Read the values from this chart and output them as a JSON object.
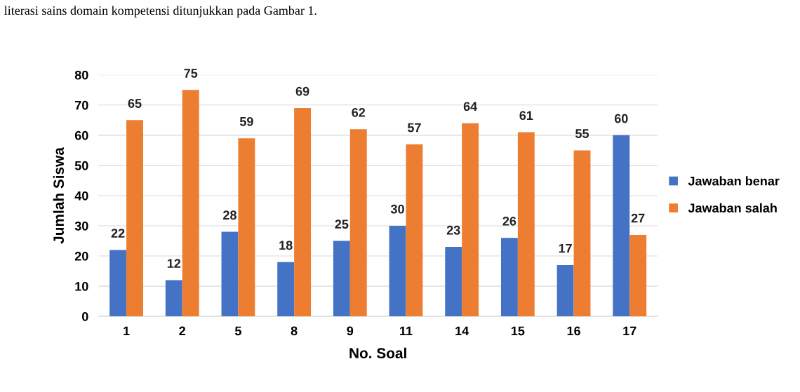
{
  "chart_data": {
    "type": "bar",
    "annotations": [
      "literasi sains domain kompetensi ditunjukkan pada Gambar 1."
    ],
    "xlabel": "No. Soal",
    "ylabel": "Jumlah Siswa",
    "categories": [
      "1",
      "2",
      "5",
      "8",
      "9",
      "11",
      "14",
      "15",
      "16",
      "17"
    ],
    "series": [
      {
        "name": "Jawaban benar",
        "color": "#4472c4",
        "values": [
          22,
          12,
          28,
          18,
          25,
          30,
          23,
          26,
          17,
          60
        ]
      },
      {
        "name": "Jawaban salah",
        "color": "#ed7d31",
        "values": [
          65,
          75,
          59,
          69,
          62,
          57,
          64,
          61,
          55,
          27
        ]
      }
    ],
    "ylim": [
      0,
      80
    ],
    "yticks": [
      0,
      10,
      20,
      30,
      40,
      50,
      60,
      70,
      80
    ],
    "grid": "y",
    "legend": "right",
    "data_labels": true
  }
}
